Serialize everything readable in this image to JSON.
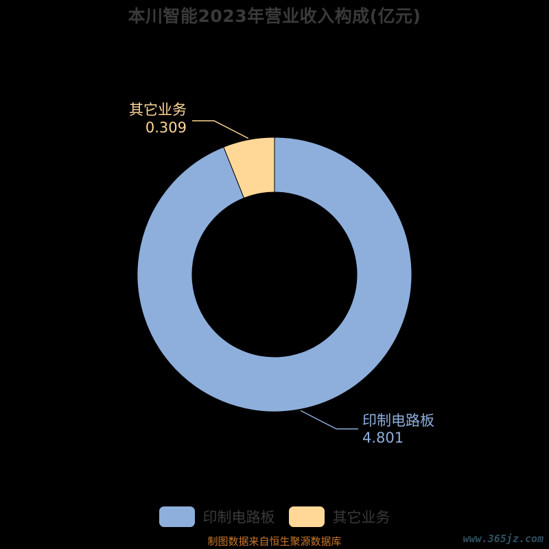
{
  "chart_data": {
    "type": "pie",
    "title": "本川智能2023年营业收入构成(亿元)",
    "donut": true,
    "categories": [
      "印制电路板",
      "其它业务"
    ],
    "values": [
      4.801,
      0.309
    ],
    "value_labels": [
      "4.801",
      "0.309"
    ],
    "colors": [
      "#8eafdc",
      "#ffd898"
    ],
    "legend": {
      "position": "bottom",
      "items": [
        "印制电路板",
        "其它业务"
      ]
    }
  },
  "footer": {
    "source": "制图数据来自恒生聚源数据库",
    "watermark": "www.365jz.com"
  },
  "theme": {
    "background": "#000000",
    "label_color_series1": "#8eafdc",
    "label_color_series2": "#ffd898"
  }
}
